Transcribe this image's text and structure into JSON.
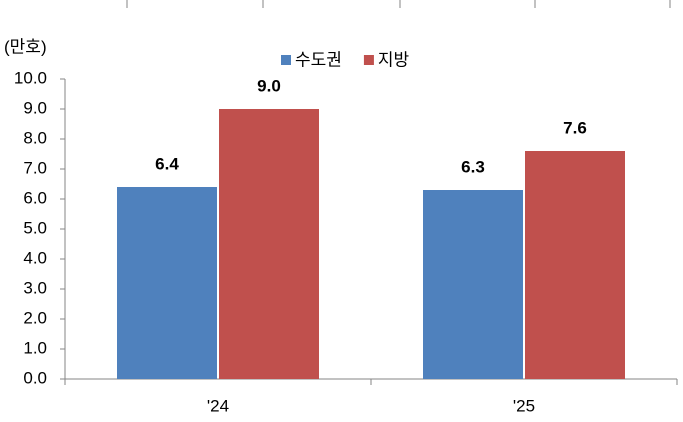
{
  "chart_data": {
    "type": "bar",
    "y_label": "(만호)",
    "categories": [
      "'24",
      "'25"
    ],
    "series": [
      {
        "name": "수도권",
        "color": "#4f81bd",
        "values": [
          6.4,
          6.3
        ],
        "value_labels": [
          "6.4",
          "6.3"
        ]
      },
      {
        "name": "지방",
        "color": "#c0504d",
        "values": [
          9.0,
          7.6
        ],
        "value_labels": [
          "9.0",
          "7.6"
        ]
      }
    ],
    "ylim": [
      0,
      10
    ],
    "yticks": [
      {
        "value": 0,
        "label": "0.0"
      },
      {
        "value": 1,
        "label": "1.0"
      },
      {
        "value": 2,
        "label": "2.0"
      },
      {
        "value": 3,
        "label": "3.0"
      },
      {
        "value": 4,
        "label": "4.0"
      },
      {
        "value": 5,
        "label": "5.0"
      },
      {
        "value": 6,
        "label": "6.0"
      },
      {
        "value": 7,
        "label": "7.0"
      },
      {
        "value": 8,
        "label": "8.0"
      },
      {
        "value": 9,
        "label": "9.0"
      },
      {
        "value": 10,
        "label": "10.0"
      }
    ],
    "legend": "top"
  }
}
